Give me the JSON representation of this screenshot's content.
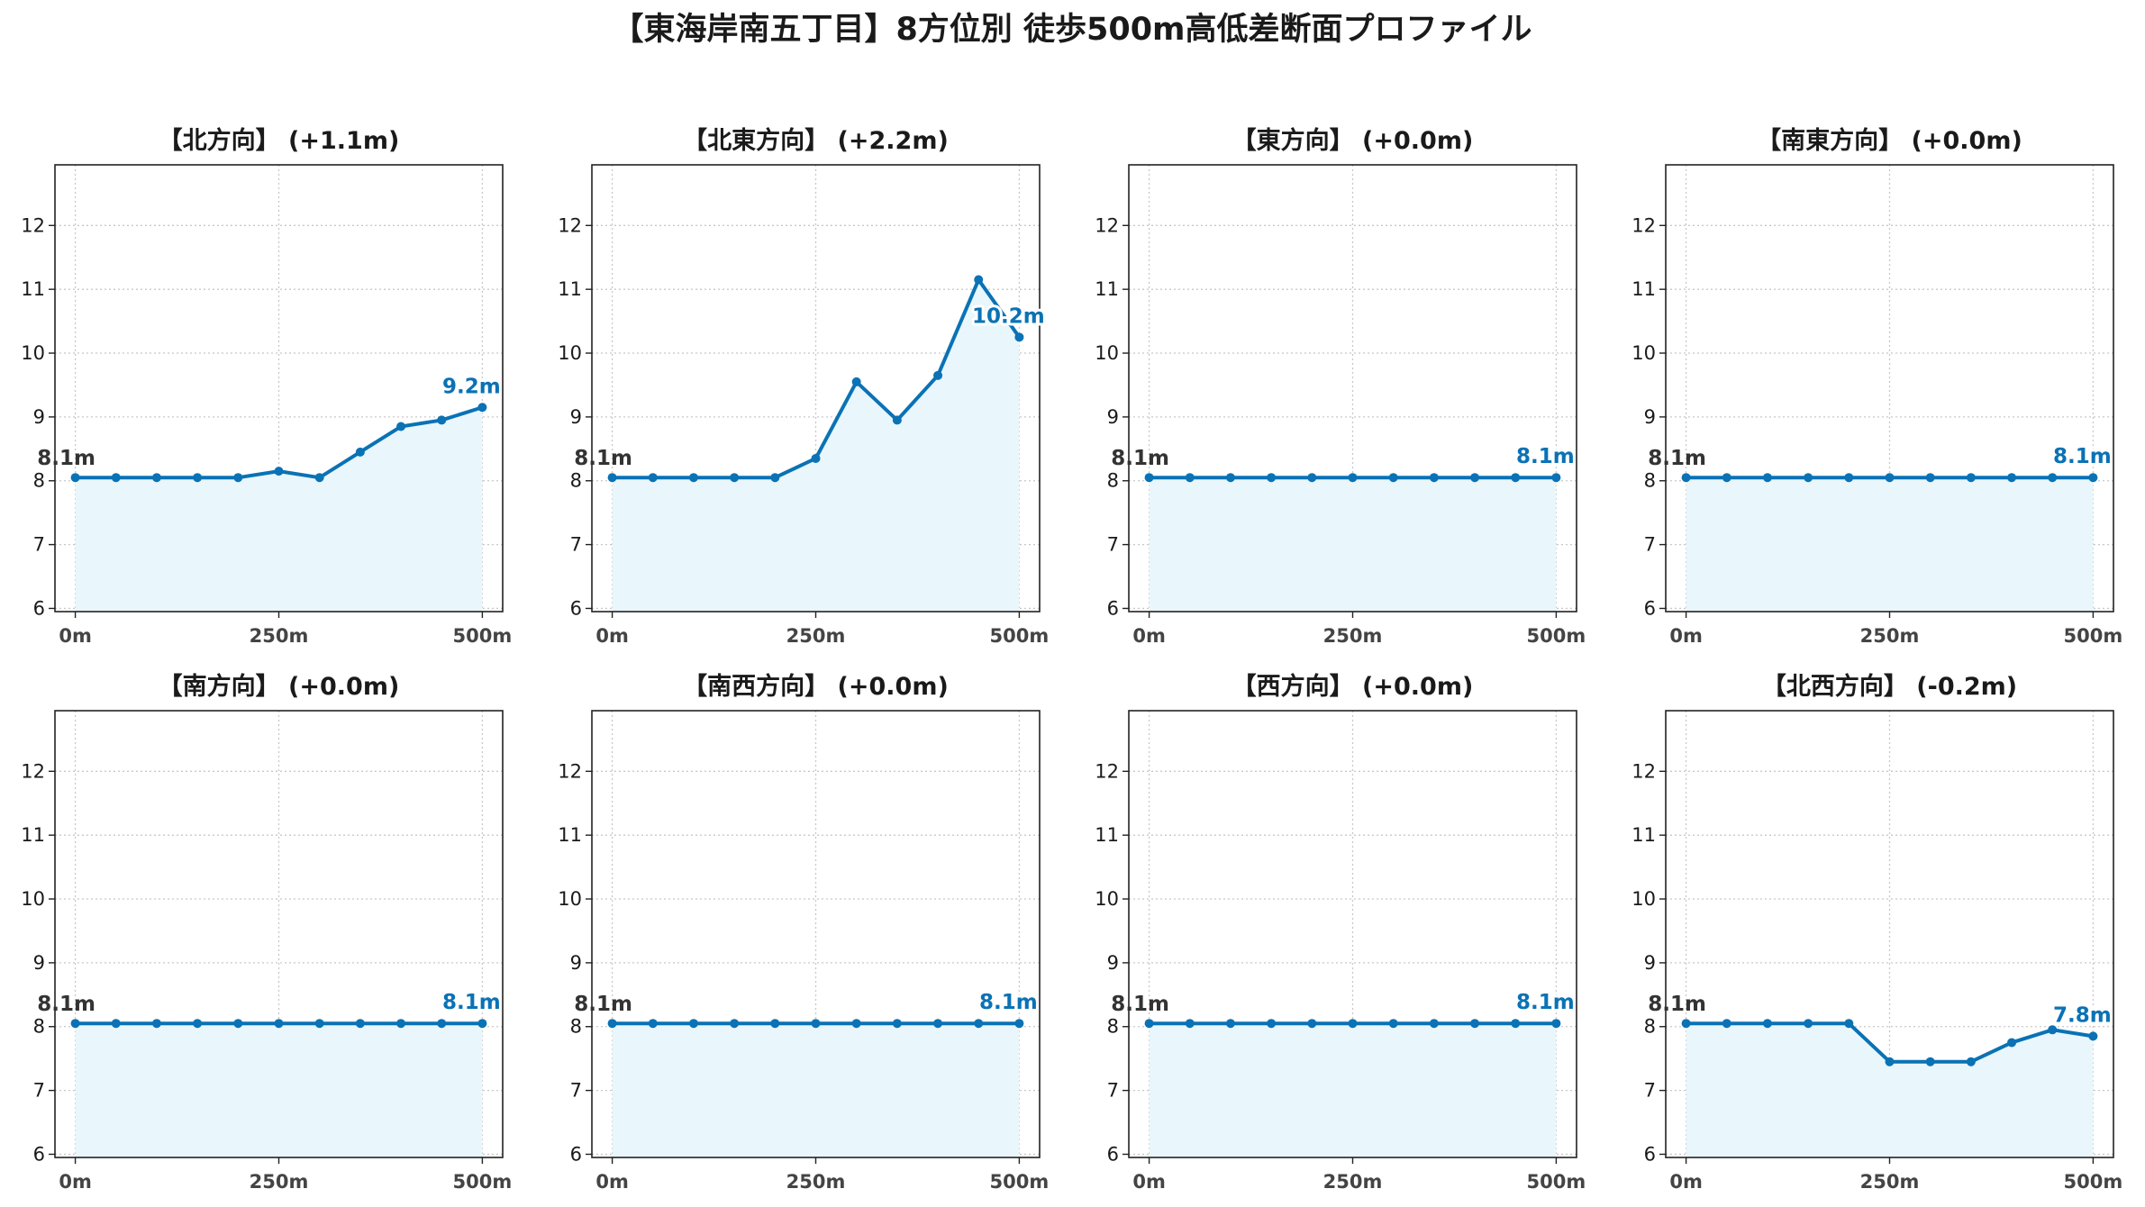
{
  "title": "【東海岸南五丁目】8方位別 徒歩500m高低差断面プロファイル",
  "colors": {
    "line": "#0a72b5",
    "fill": "#e9f6fb",
    "grid": "#c8c8c8",
    "axis": "#222222"
  },
  "chart_data": [
    {
      "type": "line",
      "title": "【北方向】 (+1.1m)",
      "x": [
        0,
        50,
        100,
        150,
        200,
        250,
        300,
        350,
        400,
        450,
        500
      ],
      "values": [
        8.05,
        8.05,
        8.05,
        8.05,
        8.05,
        8.15,
        8.05,
        8.45,
        8.85,
        8.95,
        9.15
      ],
      "start_label": "8.1m",
      "end_label": "9.2m",
      "xticks": [
        "0m",
        "250m",
        "500m"
      ],
      "yticks": [
        "6",
        "7",
        "8",
        "9",
        "10",
        "11",
        "12"
      ],
      "ylim": [
        5.95,
        12.95
      ],
      "grid": true
    },
    {
      "type": "line",
      "title": "【北東方向】 (+2.2m)",
      "x": [
        0,
        50,
        100,
        150,
        200,
        250,
        300,
        350,
        400,
        450,
        500
      ],
      "values": [
        8.05,
        8.05,
        8.05,
        8.05,
        8.05,
        8.35,
        9.55,
        8.95,
        9.65,
        11.15,
        10.25
      ],
      "start_label": "8.1m",
      "end_label": "10.2m",
      "xticks": [
        "0m",
        "250m",
        "500m"
      ],
      "yticks": [
        "6",
        "7",
        "8",
        "9",
        "10",
        "11",
        "12"
      ],
      "ylim": [
        5.95,
        12.95
      ],
      "grid": true
    },
    {
      "type": "line",
      "title": "【東方向】 (+0.0m)",
      "x": [
        0,
        50,
        100,
        150,
        200,
        250,
        300,
        350,
        400,
        450,
        500
      ],
      "values": [
        8.05,
        8.05,
        8.05,
        8.05,
        8.05,
        8.05,
        8.05,
        8.05,
        8.05,
        8.05,
        8.05
      ],
      "start_label": "8.1m",
      "end_label": "8.1m",
      "xticks": [
        "0m",
        "250m",
        "500m"
      ],
      "yticks": [
        "6",
        "7",
        "8",
        "9",
        "10",
        "11",
        "12"
      ],
      "ylim": [
        5.95,
        12.95
      ],
      "grid": true
    },
    {
      "type": "line",
      "title": "【南東方向】 (+0.0m)",
      "x": [
        0,
        50,
        100,
        150,
        200,
        250,
        300,
        350,
        400,
        450,
        500
      ],
      "values": [
        8.05,
        8.05,
        8.05,
        8.05,
        8.05,
        8.05,
        8.05,
        8.05,
        8.05,
        8.05,
        8.05
      ],
      "start_label": "8.1m",
      "end_label": "8.1m",
      "xticks": [
        "0m",
        "250m",
        "500m"
      ],
      "yticks": [
        "6",
        "7",
        "8",
        "9",
        "10",
        "11",
        "12"
      ],
      "ylim": [
        5.95,
        12.95
      ],
      "grid": true
    },
    {
      "type": "line",
      "title": "【南方向】 (+0.0m)",
      "x": [
        0,
        50,
        100,
        150,
        200,
        250,
        300,
        350,
        400,
        450,
        500
      ],
      "values": [
        8.05,
        8.05,
        8.05,
        8.05,
        8.05,
        8.05,
        8.05,
        8.05,
        8.05,
        8.05,
        8.05
      ],
      "start_label": "8.1m",
      "end_label": "8.1m",
      "xticks": [
        "0m",
        "250m",
        "500m"
      ],
      "yticks": [
        "6",
        "7",
        "8",
        "9",
        "10",
        "11",
        "12"
      ],
      "ylim": [
        5.95,
        12.95
      ],
      "grid": true
    },
    {
      "type": "line",
      "title": "【南西方向】 (+0.0m)",
      "x": [
        0,
        50,
        100,
        150,
        200,
        250,
        300,
        350,
        400,
        450,
        500
      ],
      "values": [
        8.05,
        8.05,
        8.05,
        8.05,
        8.05,
        8.05,
        8.05,
        8.05,
        8.05,
        8.05,
        8.05
      ],
      "start_label": "8.1m",
      "end_label": "8.1m",
      "xticks": [
        "0m",
        "250m",
        "500m"
      ],
      "yticks": [
        "6",
        "7",
        "8",
        "9",
        "10",
        "11",
        "12"
      ],
      "ylim": [
        5.95,
        12.95
      ],
      "grid": true
    },
    {
      "type": "line",
      "title": "【西方向】 (+0.0m)",
      "x": [
        0,
        50,
        100,
        150,
        200,
        250,
        300,
        350,
        400,
        450,
        500
      ],
      "values": [
        8.05,
        8.05,
        8.05,
        8.05,
        8.05,
        8.05,
        8.05,
        8.05,
        8.05,
        8.05,
        8.05
      ],
      "start_label": "8.1m",
      "end_label": "8.1m",
      "xticks": [
        "0m",
        "250m",
        "500m"
      ],
      "yticks": [
        "6",
        "7",
        "8",
        "9",
        "10",
        "11",
        "12"
      ],
      "ylim": [
        5.95,
        12.95
      ],
      "grid": true
    },
    {
      "type": "line",
      "title": "【北西方向】 (-0.2m)",
      "x": [
        0,
        50,
        100,
        150,
        200,
        250,
        300,
        350,
        400,
        450,
        500
      ],
      "values": [
        8.05,
        8.05,
        8.05,
        8.05,
        8.05,
        7.45,
        7.45,
        7.45,
        7.75,
        7.95,
        7.85
      ],
      "start_label": "8.1m",
      "end_label": "7.8m",
      "xticks": [
        "0m",
        "250m",
        "500m"
      ],
      "yticks": [
        "6",
        "7",
        "8",
        "9",
        "10",
        "11",
        "12"
      ],
      "ylim": [
        5.95,
        12.95
      ],
      "grid": true
    }
  ]
}
